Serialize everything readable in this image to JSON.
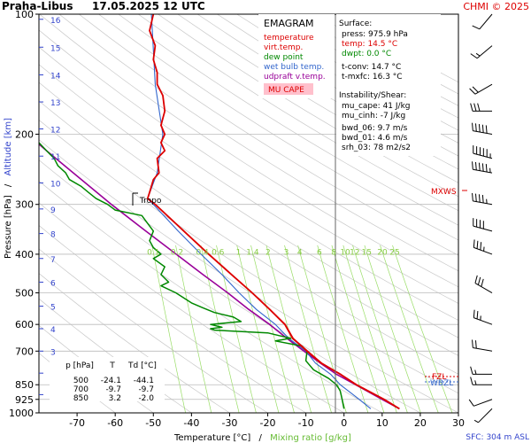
{
  "header": {
    "station": "Praha-Libus",
    "datetime": "17.05.2025 12 UTC",
    "credit": "CHMI © 2025"
  },
  "footer": {
    "sfc": "SFC: 304 m ASL"
  },
  "legend": {
    "title": "EMAGRAM",
    "items": [
      {
        "label": "temperature",
        "color": "#dd0000"
      },
      {
        "label": "virt.temp.",
        "color": "#dd0000"
      },
      {
        "label": "dew point",
        "color": "#008800"
      },
      {
        "label": "wet bulb temp.",
        "color": "#3366cc"
      },
      {
        "label": "udpraft v.temp.",
        "color": "#990099"
      }
    ],
    "mucape": "MU CAPE"
  },
  "stats": {
    "surface_title": "Surface:",
    "press": "press: 975.9 hPa",
    "temp": "temp: 14.5 °C",
    "dwpt": "dwpt: 0.0 °C",
    "tconv": "t-conv: 14.7 °C",
    "tmxfc": "t-mxfc: 16.3 °C",
    "instab_title": "Instability/Shear:",
    "mu_cape": "mu_cape: 41 J/kg",
    "mu_cinh": "mu_cinh: -7 J/kg",
    "bwd06": "bwd_06: 9.7 m/s",
    "bwd01": "bwd_01: 4.6 m/s",
    "srh03": "srh_03: 78 m2/s2"
  },
  "table": {
    "headers": [
      "p [hPa]",
      "T",
      "Td [°C]"
    ],
    "rows": [
      [
        "500",
        "-24.1",
        "-44.1"
      ],
      [
        "700",
        "-9.7",
        "-9.7"
      ],
      [
        "850",
        "3.2",
        "-2.0"
      ]
    ]
  },
  "labels": {
    "tropo": "Tropo",
    "mxws": "MXWS",
    "fzl": "FZL",
    "wbzl": "WBZL",
    "ylabel_pressure": "Pressure [hPa]",
    "ylabel_sep": "/",
    "ylabel_altitude": "Altitude [km]",
    "xlabel_temp": "Temperature [°C]",
    "xlabel_sep": "/",
    "xlabel_mix": "Mixing ratio [g/kg]"
  },
  "colors": {
    "temperature": "#dd0000",
    "dewpoint": "#008800",
    "wetbulb": "#3366cc",
    "parcel": "#990099",
    "mixing": "#99dd66",
    "altitude": "#3344cc",
    "grid": "#bbbbbb",
    "dry_adiabat": "#c8c8c8",
    "credit": "#dd0000"
  },
  "chart_data": {
    "type": "line",
    "diagram": "emagram",
    "xlim": [
      -80,
      30
    ],
    "ylim_hpa": [
      1000,
      100
    ],
    "x_ticks": [
      -70,
      -60,
      -50,
      -40,
      -30,
      -20,
      -10,
      0,
      10,
      20,
      30
    ],
    "y_ticks": [
      100,
      200,
      300,
      400,
      500,
      600,
      700,
      850,
      925,
      1000
    ],
    "altitude_ticks_km": [
      1,
      2,
      3,
      4,
      5,
      6,
      7,
      8,
      9,
      10,
      11,
      12,
      13,
      14,
      15,
      16
    ],
    "altitude_tick_pressures": [
      900,
      795,
      700,
      615,
      540,
      470,
      410,
      355,
      308,
      265,
      227,
      194,
      166,
      142,
      121,
      103
    ],
    "mixing_ratio_labels": [
      "0.1",
      "0.2",
      "0.4",
      "0.6",
      "1",
      "1.4",
      "2",
      "3",
      "4",
      "6",
      "8",
      "10",
      "12",
      "15",
      "20",
      "25"
    ],
    "mixing_ratio_values": [
      0.1,
      0.2,
      0.4,
      0.6,
      1,
      1.4,
      2,
      3,
      4,
      6,
      8,
      10,
      12,
      15,
      20,
      25
    ],
    "series": [
      {
        "key": "temperature",
        "name": "temperature",
        "points": [
          [
            976,
            14.5
          ],
          [
            925,
            10.5
          ],
          [
            850,
            3.2
          ],
          [
            800,
            -1
          ],
          [
            750,
            -6
          ],
          [
            700,
            -9.7
          ],
          [
            650,
            -13.5
          ],
          [
            600,
            -15.5
          ],
          [
            550,
            -19.5
          ],
          [
            500,
            -24.1
          ],
          [
            450,
            -29.5
          ],
          [
            400,
            -35.5
          ],
          [
            350,
            -42
          ],
          [
            300,
            -49.5
          ],
          [
            290,
            -51.5
          ],
          [
            280,
            -51
          ],
          [
            260,
            -50
          ],
          [
            250,
            -48.5
          ],
          [
            230,
            -49
          ],
          [
            220,
            -47
          ],
          [
            210,
            -48
          ],
          [
            200,
            -47
          ],
          [
            190,
            -48
          ],
          [
            175,
            -47
          ],
          [
            160,
            -47.5
          ],
          [
            150,
            -49
          ],
          [
            140,
            -49
          ],
          [
            130,
            -50
          ],
          [
            120,
            -49.5
          ],
          [
            110,
            -51
          ],
          [
            100,
            -50
          ]
        ]
      },
      {
        "key": "virtual",
        "name": "virt.temp.",
        "points": [
          [
            976,
            14.6
          ],
          [
            925,
            10.7
          ],
          [
            850,
            3.4
          ],
          [
            800,
            -0.8
          ],
          [
            750,
            -5.8
          ],
          [
            700,
            -9.5
          ],
          [
            650,
            -13.3
          ],
          [
            600,
            -15.4
          ],
          [
            550,
            -19.4
          ],
          [
            500,
            -24
          ],
          [
            450,
            -29.4
          ],
          [
            400,
            -35.4
          ],
          [
            350,
            -42
          ],
          [
            300,
            -49.5
          ],
          [
            290,
            -51.5
          ],
          [
            280,
            -51
          ],
          [
            260,
            -50
          ],
          [
            250,
            -48.5
          ],
          [
            230,
            -49
          ],
          [
            220,
            -47
          ],
          [
            210,
            -48
          ],
          [
            200,
            -47
          ],
          [
            190,
            -48
          ],
          [
            175,
            -47
          ],
          [
            160,
            -47.5
          ],
          [
            150,
            -49
          ],
          [
            140,
            -49
          ],
          [
            130,
            -50
          ],
          [
            120,
            -49.5
          ],
          [
            110,
            -51
          ],
          [
            100,
            -50
          ]
        ]
      },
      {
        "key": "dewpoint",
        "name": "dew point",
        "points": [
          [
            976,
            0
          ],
          [
            925,
            -0.5
          ],
          [
            880,
            -1
          ],
          [
            850,
            -2
          ],
          [
            820,
            -4
          ],
          [
            780,
            -8
          ],
          [
            740,
            -10
          ],
          [
            700,
            -9.7
          ],
          [
            680,
            -11
          ],
          [
            660,
            -18
          ],
          [
            650,
            -14
          ],
          [
            640,
            -17
          ],
          [
            630,
            -20
          ],
          [
            620,
            -34
          ],
          [
            615,
            -35
          ],
          [
            610,
            -32
          ],
          [
            600,
            -35
          ],
          [
            590,
            -27
          ],
          [
            575,
            -29
          ],
          [
            560,
            -34
          ],
          [
            545,
            -37
          ],
          [
            530,
            -40
          ],
          [
            500,
            -44.1
          ],
          [
            480,
            -48
          ],
          [
            470,
            -46
          ],
          [
            450,
            -48
          ],
          [
            430,
            -47
          ],
          [
            410,
            -50
          ],
          [
            400,
            -48
          ],
          [
            385,
            -50
          ],
          [
            370,
            -51
          ],
          [
            350,
            -50
          ],
          [
            330,
            -52
          ],
          [
            320,
            -53
          ],
          [
            310,
            -60
          ],
          [
            300,
            -62
          ],
          [
            290,
            -65
          ],
          [
            280,
            -67
          ],
          [
            270,
            -69
          ],
          [
            260,
            -72
          ],
          [
            250,
            -73
          ],
          [
            240,
            -75
          ],
          [
            230,
            -76
          ],
          [
            220,
            -78
          ],
          [
            210,
            -80
          ]
        ]
      },
      {
        "key": "wetbulb",
        "name": "wet bulb temp.",
        "points": [
          [
            976,
            7
          ],
          [
            925,
            4
          ],
          [
            850,
            -1
          ],
          [
            800,
            -3.5
          ],
          [
            750,
            -7.5
          ],
          [
            700,
            -10
          ],
          [
            650,
            -14.5
          ],
          [
            600,
            -18
          ],
          [
            550,
            -23
          ],
          [
            500,
            -27.5
          ],
          [
            450,
            -32
          ],
          [
            400,
            -37.5
          ],
          [
            350,
            -43.5
          ],
          [
            300,
            -50
          ],
          [
            290,
            -51.5
          ],
          [
            250,
            -49
          ],
          [
            200,
            -47.5
          ],
          [
            150,
            -49.5
          ],
          [
            100,
            -50.5
          ]
        ]
      },
      {
        "key": "parcel",
        "name": "udpraft v.temp.",
        "points": [
          [
            976,
            14.5
          ],
          [
            925,
            10
          ],
          [
            850,
            3
          ],
          [
            800,
            -2
          ],
          [
            750,
            -6.2
          ],
          [
            700,
            -10.5
          ],
          [
            650,
            -15
          ],
          [
            600,
            -19.5
          ],
          [
            550,
            -25
          ],
          [
            500,
            -30.5
          ],
          [
            450,
            -37
          ],
          [
            400,
            -44
          ],
          [
            350,
            -52
          ],
          [
            300,
            -61
          ],
          [
            250,
            -71
          ],
          [
            220,
            -78
          ],
          [
            200,
            -83
          ]
        ]
      }
    ],
    "wind_profile": [
      [
        976,
        225,
        5
      ],
      [
        925,
        250,
        10
      ],
      [
        850,
        270,
        15
      ],
      [
        800,
        270,
        15
      ],
      [
        700,
        280,
        20
      ],
      [
        600,
        290,
        25
      ],
      [
        500,
        300,
        30
      ],
      [
        400,
        290,
        35
      ],
      [
        350,
        285,
        40
      ],
      [
        300,
        280,
        45
      ],
      [
        250,
        280,
        55
      ],
      [
        230,
        285,
        60
      ],
      [
        200,
        280,
        50
      ],
      [
        175,
        270,
        30
      ],
      [
        150,
        240,
        20
      ],
      [
        120,
        230,
        15
      ],
      [
        100,
        220,
        10
      ]
    ]
  }
}
